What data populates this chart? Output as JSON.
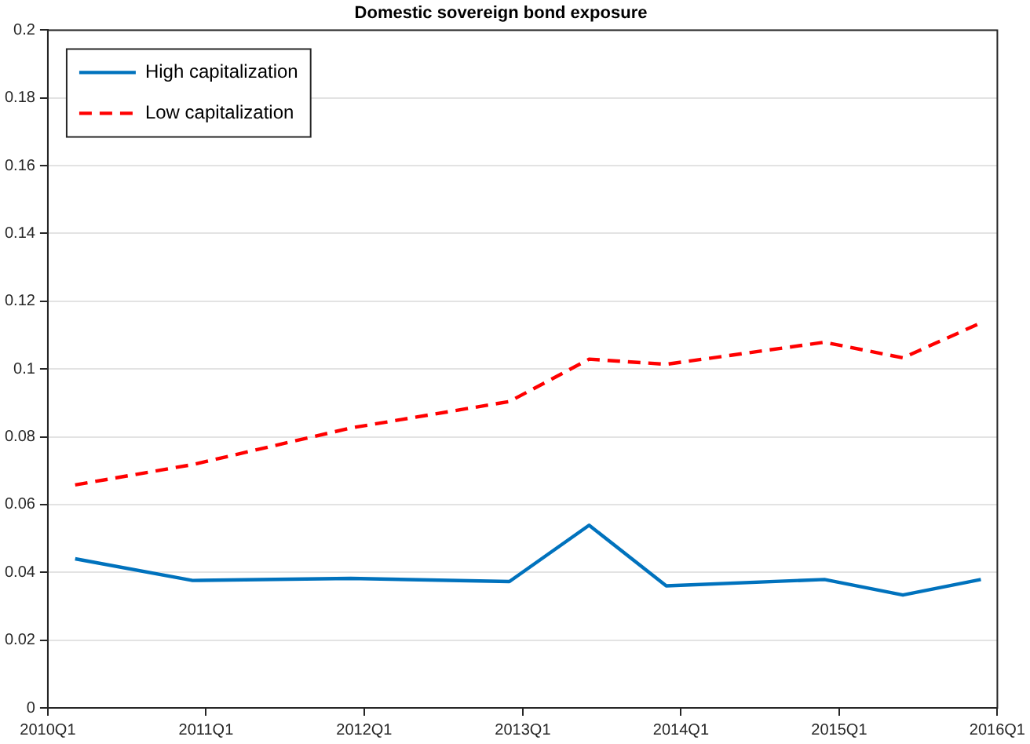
{
  "chart_data": {
    "type": "line",
    "title": "Domestic sovereign bond exposure",
    "x": [
      "2010-03-05",
      "2010-12-01",
      "2011-12-01",
      "2012-12-01",
      "2013-06-03",
      "2013-11-28",
      "2014-11-28",
      "2015-05-28",
      "2015-11-24"
    ],
    "series": [
      {
        "name": "High capitalization",
        "color": "#0072bd",
        "line_style": "solid",
        "values": [
          0.044,
          0.0376,
          0.0382,
          0.0373,
          0.0539,
          0.036,
          0.0379,
          0.0333,
          0.0379
        ]
      },
      {
        "name": "Low capitalization",
        "color": "#ff0000",
        "line_style": "dashed",
        "values": [
          0.0658,
          0.0718,
          0.0826,
          0.0904,
          0.1029,
          0.1014,
          0.1079,
          0.1033,
          0.1136
        ]
      }
    ],
    "xlim": [
      "2010-01-01",
      "2016-01-01"
    ],
    "xticks": [
      {
        "value": "2010-01-01",
        "label": "2010Q1"
      },
      {
        "value": "2011-01-01",
        "label": "2011Q1"
      },
      {
        "value": "2012-01-01",
        "label": "2012Q1"
      },
      {
        "value": "2013-01-01",
        "label": "2013Q1"
      },
      {
        "value": "2014-01-01",
        "label": "2014Q1"
      },
      {
        "value": "2015-01-01",
        "label": "2015Q1"
      },
      {
        "value": "2016-01-01",
        "label": "2016Q1"
      }
    ],
    "ylim": [
      0,
      0.2
    ],
    "yticks": [
      0,
      0.02,
      0.04,
      0.06,
      0.08,
      0.1,
      0.12,
      0.14,
      0.16,
      0.18,
      0.2
    ],
    "grid": "y",
    "legend": "top left",
    "marker": "none"
  }
}
